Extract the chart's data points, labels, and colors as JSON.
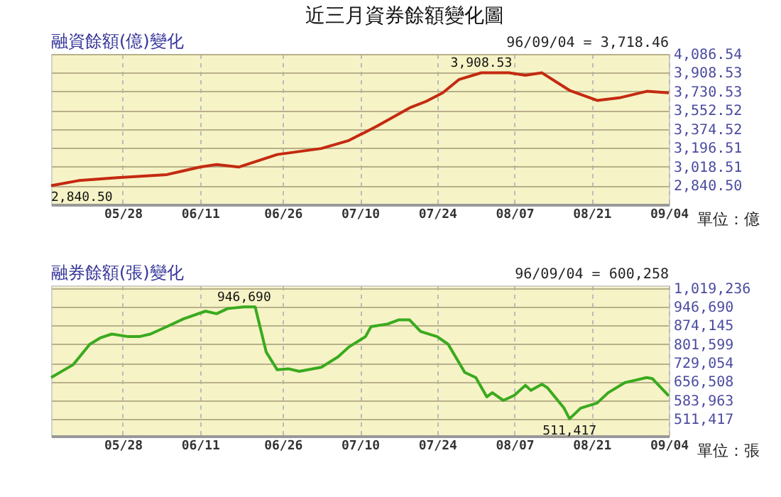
{
  "chart_data": [
    {
      "type": "line",
      "title": "近三月資券餘額變化圖",
      "subtitle": "融資餘額(億)變化",
      "color": "#c42a10",
      "grid": true,
      "x": [
        "--05-15",
        "--05-20",
        "--05-27",
        "--06-05",
        "--06-11",
        "--06-14",
        "--06-18",
        "--06-25",
        "--07-03",
        "--07-08",
        "--07-13",
        "--07-19",
        "--07-22",
        "--07-25",
        "--07-28",
        "--08-01",
        "--08-06",
        "--08-09",
        "--08-12",
        "--08-17",
        "--08-22",
        "--08-26",
        "--08-31",
        "--09-04"
      ],
      "values": [
        2840.5,
        2888,
        2916,
        2945,
        3016,
        3040,
        3016,
        3135,
        3192,
        3268,
        3401,
        3576,
        3638,
        3719,
        3846,
        3908.53,
        3908,
        3885,
        3908,
        3742,
        3647,
        3671,
        3733,
        3718.46
      ],
      "xlim": [
        "--05-15",
        "--09-04"
      ],
      "xticks": [
        {
          "value": "--05-28",
          "label": "05/28"
        },
        {
          "value": "--06-11",
          "label": "06/11"
        },
        {
          "value": "--06-26",
          "label": "06/26"
        },
        {
          "value": "--07-10",
          "label": "07/10"
        },
        {
          "value": "--07-24",
          "label": "07/24"
        },
        {
          "value": "--08-07",
          "label": "08/07"
        },
        {
          "value": "--08-21",
          "label": "08/21"
        },
        {
          "value": "--09-04",
          "label": "09/04"
        }
      ],
      "ylim": [
        2662,
        4086.54
      ],
      "yticks": [
        {
          "value": 2840.5,
          "label": "2,840.50"
        },
        {
          "value": 3018.51,
          "label": "3,018.51"
        },
        {
          "value": 3196.51,
          "label": "3,196.51"
        },
        {
          "value": 3374.52,
          "label": "3,374.52"
        },
        {
          "value": 3552.52,
          "label": "3,552.52"
        },
        {
          "value": 3730.53,
          "label": "3,730.53"
        },
        {
          "value": 3908.53,
          "label": "3,908.53"
        },
        {
          "value": 4086.54,
          "label": "4,086.54"
        }
      ],
      "annotations": [
        "96/09/04 = 3,718.46",
        "單位：億",
        {
          "text": "3,908.53",
          "x": "--08-01",
          "y": 3908.53
        },
        {
          "text": "2,840.50",
          "x": "--05-15",
          "y": 2840.5
        }
      ]
    },
    {
      "type": "line",
      "subtitle": "融券餘額(張)變化",
      "color": "#3aaa1e",
      "grid": true,
      "x": [
        "--05-15",
        "--05-19",
        "--05-22",
        "--05-24",
        "--05-26",
        "--05-29",
        "--05-31",
        "--06-02",
        "--06-05",
        "--06-08",
        "--06-12",
        "--06-14",
        "--06-16",
        "--06-19",
        "--06-21",
        "--06-23",
        "--06-25",
        "--06-27",
        "--06-29",
        "--07-03",
        "--07-06",
        "--07-08",
        "--07-11",
        "--07-12",
        "--07-15",
        "--07-17",
        "--07-19",
        "--07-21",
        "--07-24",
        "--07-26",
        "--07-29",
        "--07-31",
        "--08-02",
        "--08-03",
        "--08-05",
        "--08-07",
        "--08-09",
        "--08-10",
        "--08-12",
        "--08-13",
        "--08-16",
        "--08-17",
        "--08-19",
        "--08-22",
        "--08-24",
        "--08-27",
        "--08-29",
        "--08-31",
        "--09-01",
        "--09-04"
      ],
      "values": [
        672000,
        722000,
        801000,
        827000,
        841000,
        831000,
        831000,
        841000,
        870000,
        900000,
        930000,
        920000,
        940000,
        946690,
        946690,
        771000,
        702000,
        706000,
        696000,
        712000,
        752000,
        791000,
        831000,
        870000,
        880000,
        896000,
        896000,
        851000,
        831000,
        801000,
        692000,
        672000,
        597000,
        613000,
        583000,
        603000,
        642000,
        622000,
        646000,
        632000,
        553000,
        511417,
        553000,
        573000,
        613000,
        652000,
        662000,
        672000,
        668000,
        600258
      ],
      "xlim": [
        "--05-15",
        "--09-04"
      ],
      "xticks": [
        {
          "value": "--05-28",
          "label": "05/28"
        },
        {
          "value": "--06-11",
          "label": "06/11"
        },
        {
          "value": "--06-26",
          "label": "06/26"
        },
        {
          "value": "--07-10",
          "label": "07/10"
        },
        {
          "value": "--07-24",
          "label": "07/24"
        },
        {
          "value": "--08-07",
          "label": "08/07"
        },
        {
          "value": "--08-21",
          "label": "08/21"
        },
        {
          "value": "--09-04",
          "label": "09/04"
        }
      ],
      "ylim": [
        445000,
        1030000
      ],
      "yticks": [
        {
          "value": 511417,
          "label": "511,417"
        },
        {
          "value": 583963,
          "label": "583,963"
        },
        {
          "value": 656508,
          "label": "656,508"
        },
        {
          "value": 729054,
          "label": "729,054"
        },
        {
          "value": 801599,
          "label": "801,599"
        },
        {
          "value": 874145,
          "label": "874,145"
        },
        {
          "value": 946690,
          "label": "946,690"
        },
        {
          "value": 1019236,
          "label": "1,019,236"
        }
      ],
      "annotations": [
        "96/09/04 = 600,258",
        "單位：張",
        {
          "text": "946,690",
          "x": "--06-19",
          "y": 946690
        },
        {
          "text": "511,417",
          "x": "--08-17",
          "y": 511417
        }
      ]
    }
  ]
}
